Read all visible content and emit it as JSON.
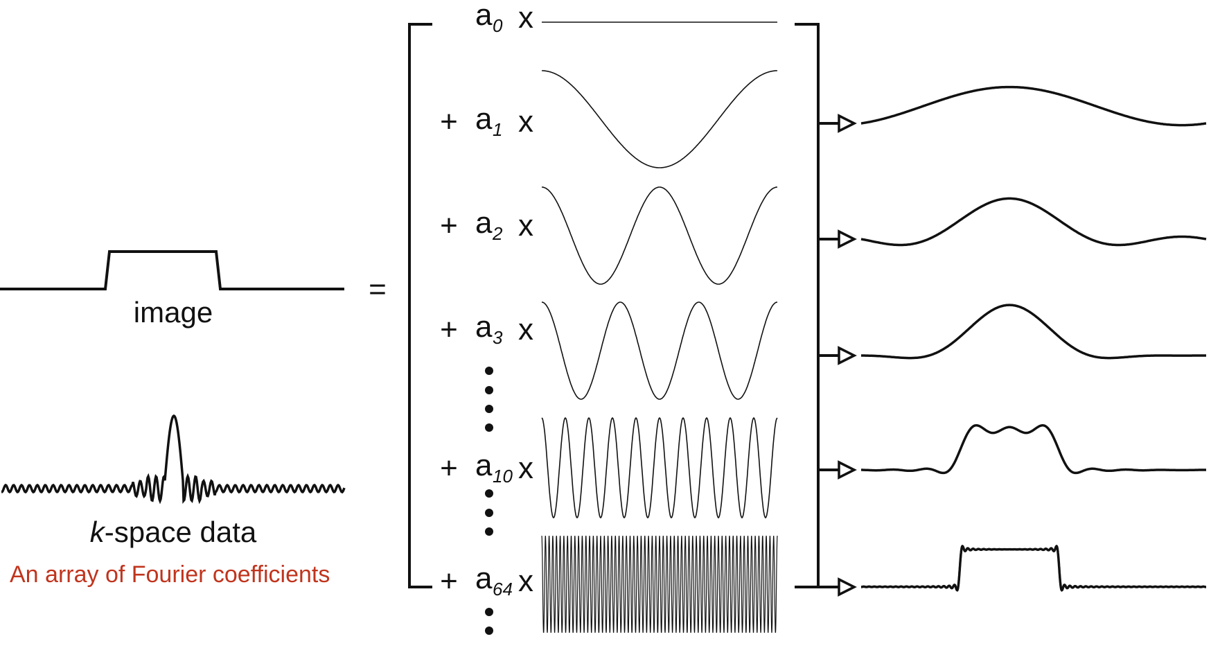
{
  "left": {
    "image_label": "image",
    "kspace_label_italic": "k",
    "kspace_label_rest": "-space data",
    "caption": "An array of Fourier coefficients",
    "caption_color": "#c0341d"
  },
  "equals": "=",
  "terms": [
    {
      "plus": "",
      "coef": "a",
      "index": "0",
      "times": "x",
      "cycles": 0
    },
    {
      "plus": "+",
      "coef": "a",
      "index": "1",
      "times": "x",
      "cycles": 1
    },
    {
      "plus": "+",
      "coef": "a",
      "index": "2",
      "times": "x",
      "cycles": 2
    },
    {
      "plus": "+",
      "coef": "a",
      "index": "3",
      "times": "x",
      "cycles": 3
    },
    {
      "plus": "+",
      "coef": "a",
      "index": "10",
      "times": "x",
      "cycles": 10
    },
    {
      "plus": "+",
      "coef": "a",
      "index": "64",
      "times": "x",
      "cycles": 64
    }
  ],
  "partial_sums_harmonics": [
    1,
    2,
    3,
    10,
    64
  ]
}
